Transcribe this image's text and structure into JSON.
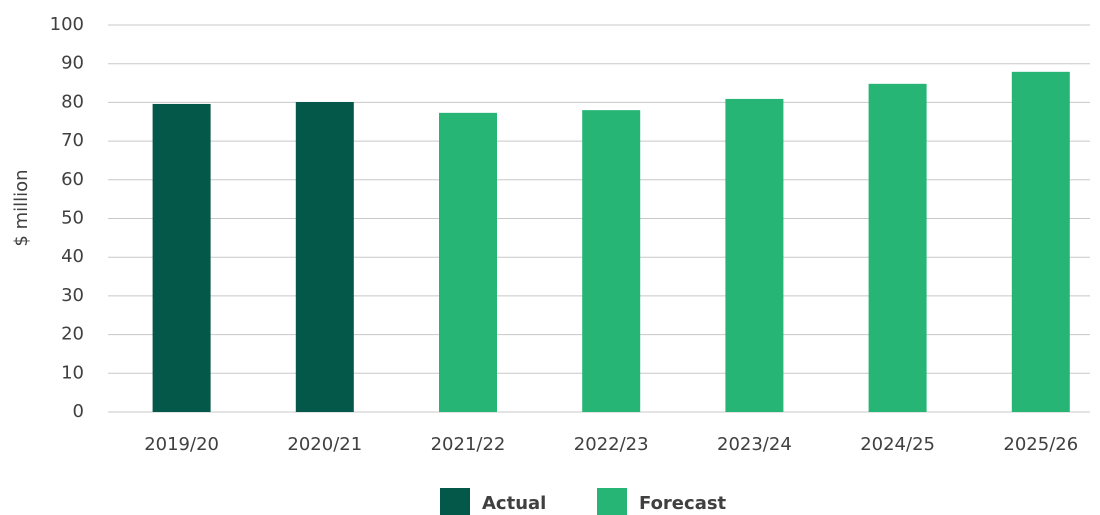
{
  "chart_data": {
    "type": "bar",
    "y_label": "$ million",
    "categories": [
      "2019/20",
      "2020/21",
      "2021/22",
      "2022/23",
      "2023/24",
      "2024/25",
      "2025/26"
    ],
    "series": [
      {
        "name": "Actual",
        "color": "#03584a",
        "values": [
          79.6,
          80.1,
          null,
          null,
          null,
          null,
          null
        ]
      },
      {
        "name": "Forecast",
        "color": "#26b574",
        "values": [
          null,
          null,
          77.3,
          78.0,
          80.9,
          84.8,
          87.9
        ]
      }
    ],
    "ylim": [
      0,
      100
    ],
    "yticks": [
      0,
      10,
      20,
      30,
      40,
      50,
      60,
      70,
      80,
      90,
      100
    ],
    "grid": true,
    "legend": "bottom"
  }
}
